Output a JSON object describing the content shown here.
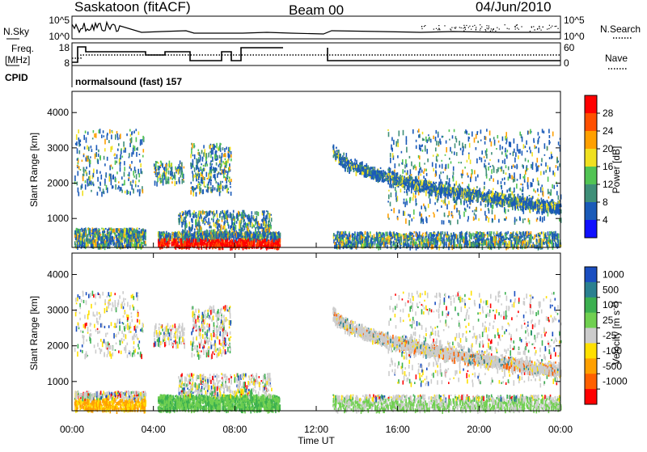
{
  "header": {
    "station": "Saskatoon (fitACF)",
    "beam": "Beam 00",
    "date": "04/Jun/2010"
  },
  "nsky_panel": {
    "left_label": "N.Sky",
    "right_label": "N.Search",
    "y_ticks": [
      "10^5",
      "10^0"
    ],
    "right_ticks": [
      "10^5",
      "10^0"
    ]
  },
  "freq_panel": {
    "left_label_1": "Freq.",
    "left_label_2": "[MHz]",
    "right_label": "Nave",
    "y_ticks": [
      "18",
      "8"
    ],
    "right_ticks": [
      "60",
      "0"
    ],
    "cpid_label": "CPID",
    "cpid_text": "normalsound (fast) 157"
  },
  "chart_data": [
    {
      "type": "heatmap",
      "name": "power",
      "ylabel": "Slant Range [km]",
      "ylim": [
        180,
        4600
      ],
      "y_ticks": [
        1000,
        2000,
        3000,
        4000
      ],
      "xlim": [
        0,
        24
      ],
      "colorbar_label": "Power [dB]",
      "colorbar_ticks": [
        "4",
        "8",
        "12",
        "16",
        "20",
        "24",
        "28"
      ],
      "colorbar_colors": [
        "#1010ff",
        "#1a5ab8",
        "#3f8f78",
        "#52c454",
        "#f0e020",
        "#ffa000",
        "#ff5000",
        "#ff0000"
      ]
    },
    {
      "type": "heatmap",
      "name": "velocity",
      "ylabel": "Slant Range [km]",
      "ylim": [
        180,
        4600
      ],
      "y_ticks": [
        1000,
        2000,
        3000,
        4000
      ],
      "xlim": [
        0,
        24
      ],
      "x_ticks": [
        "00:00",
        "04:00",
        "08:00",
        "12:00",
        "16:00",
        "20:00",
        "00:00"
      ],
      "xlabel": "Time UT",
      "colorbar_label": "Velocity [m s^-1]",
      "colorbar_ticks": [
        "1000",
        "500",
        "100",
        "25",
        "-25",
        "-100",
        "-500",
        "-1000"
      ],
      "colorbar_colors": [
        "#1a4ec0",
        "#2a8090",
        "#3cb050",
        "#70d050",
        "#cccccc",
        "#ffe000",
        "#ffa000",
        "#ff6000",
        "#ff0000"
      ]
    }
  ]
}
